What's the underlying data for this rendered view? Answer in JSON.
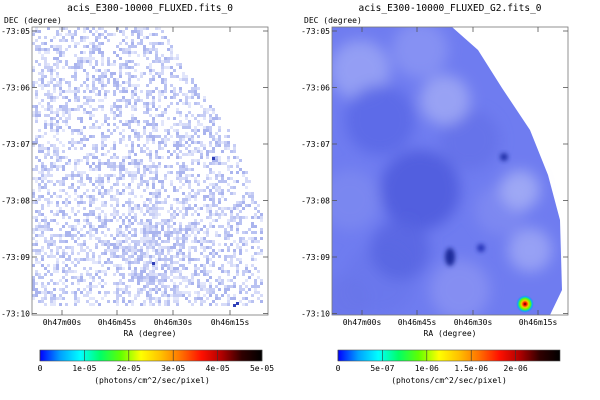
{
  "chart_data": [
    {
      "type": "heatmap",
      "title": "acis_E300-10000_FLUXED.fits_0",
      "xlabel": "RA (degree)",
      "ylabel": "DEC (degree)",
      "x_ticks": [
        "0h47m00s",
        "0h46m45s",
        "0h46m30s",
        "0h46m15s"
      ],
      "y_ticks": [
        "-73:05",
        "-73:06",
        "-73:07",
        "-73:08",
        "-73:09",
        "-73:10"
      ],
      "colorbar": {
        "label": "(photons/cm^2/sec/pixel)",
        "range": [
          0,
          5e-05
        ],
        "ticks": [
          "0",
          "1e-05",
          "2e-05",
          "3e-05",
          "4e-05",
          "5e-05"
        ]
      },
      "style": "sparse-pixels",
      "colors": {
        "pixel": "#c9d0f4",
        "hot": "#dcdcff",
        "source": "#2233aa"
      }
    },
    {
      "type": "heatmap",
      "title": "acis_E300-10000_FLUXED_G2.fits_0",
      "xlabel": "RA (degree)",
      "ylabel": "DEC (degree)",
      "x_ticks": [
        "0h47m00s",
        "0h46m45s",
        "0h46m30s",
        "0h46m15s"
      ],
      "y_ticks": [
        "-73:05",
        "-73:06",
        "-73:07",
        "-73:08",
        "-73:09",
        "-73:10"
      ],
      "colorbar": {
        "label": "(photons/cm^2/sec/pixel)",
        "range": [
          0,
          2.5e-06
        ],
        "ticks": [
          "0",
          "5e-07",
          "1e-06",
          "1.5e-06",
          "2e-06"
        ]
      },
      "style": "smoothed",
      "colors": {
        "base": "#6f7cf0",
        "light": "#a9b1f6",
        "dark": "#3e49d2"
      }
    }
  ],
  "colormap": [
    "#ffffff",
    "#0000ff",
    "#00a0ff",
    "#00ffff",
    "#00ff66",
    "#60ff00",
    "#ffff00",
    "#ffc000",
    "#ff7000",
    "#ff1000",
    "#b00000",
    "#300000",
    "#000000"
  ]
}
